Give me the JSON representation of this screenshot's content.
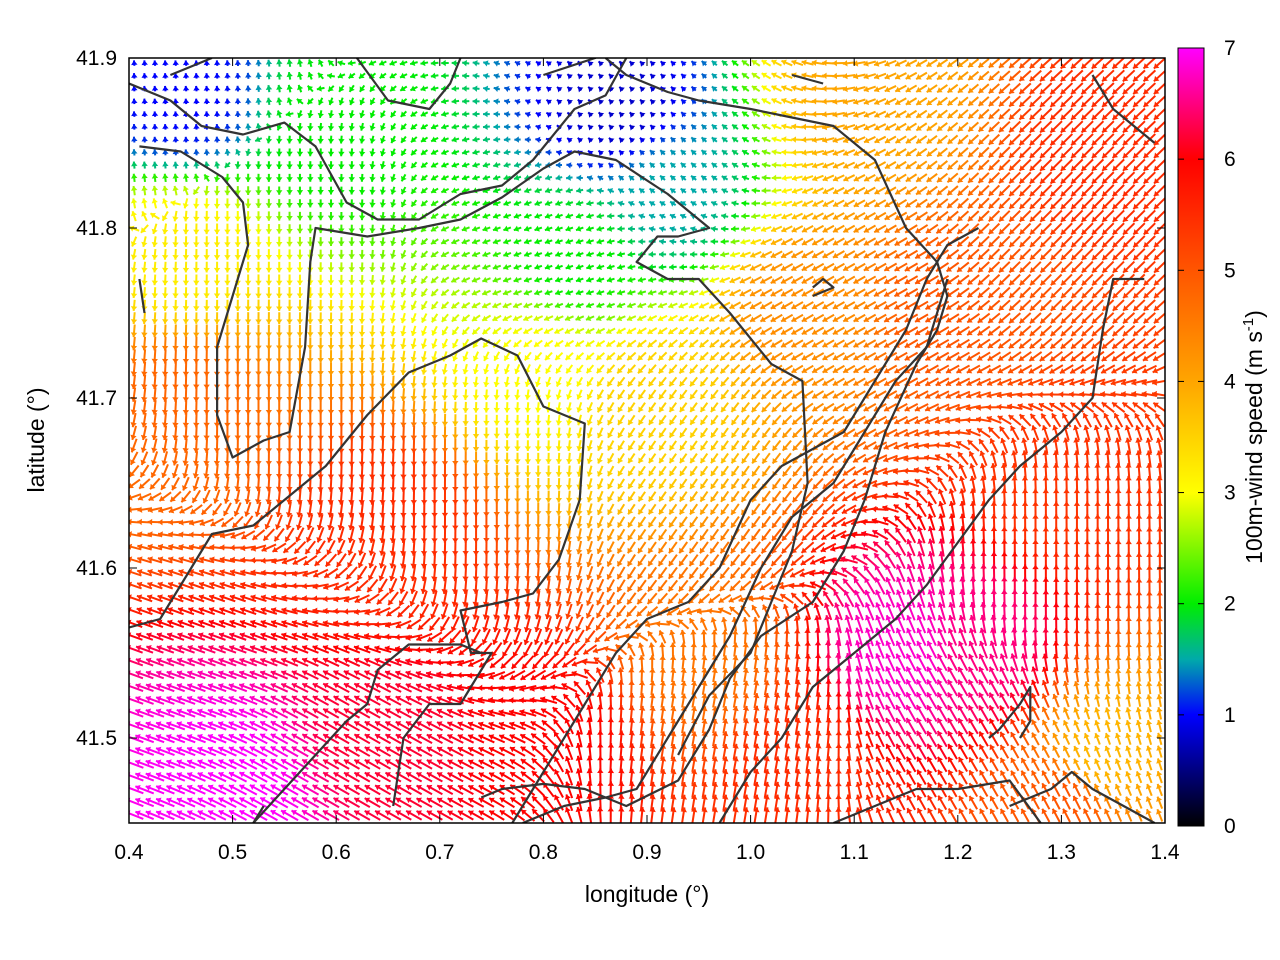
{
  "chart_data": {
    "type": "heatmap",
    "subtype": "vector-field",
    "xlabel": "longitude (°)",
    "ylabel": "latitude (°)",
    "xlim": [
      0.4,
      1.4
    ],
    "ylim": [
      41.45,
      41.9
    ],
    "xticks": [
      "0.4",
      "0.5",
      "0.6",
      "0.7",
      "0.8",
      "0.9",
      "1.0",
      "1.1",
      "1.2",
      "1.3",
      "1.4"
    ],
    "yticks": [
      "41.5",
      "41.6",
      "41.7",
      "41.8",
      "41.9"
    ],
    "grid": false,
    "colorbar": {
      "label_main": "100m-wind speed (m s",
      "label_sup": "-1",
      "label_close": ")",
      "range": [
        0,
        7
      ],
      "ticks": [
        "0",
        "1",
        "2",
        "3",
        "4",
        "5",
        "6",
        "7"
      ],
      "colormap": [
        [
          0,
          "#000000"
        ],
        [
          1,
          "#0000ff"
        ],
        [
          1.5,
          "#00aaaa"
        ],
        [
          2,
          "#00ee00"
        ],
        [
          3,
          "#ffff00"
        ],
        [
          4,
          "#ffa500"
        ],
        [
          5,
          "#ff5500"
        ],
        [
          6,
          "#ff0000"
        ],
        [
          7,
          "#ff00ff"
        ]
      ]
    },
    "arrow_grid_spacing_deg": [
      0.01,
      0.0075
    ],
    "speed_field": [
      {
        "lon": 0.45,
        "lat": 41.88,
        "speed": 1.0
      },
      {
        "lon": 0.87,
        "lat": 41.87,
        "speed": 0.8
      },
      {
        "lon": 0.92,
        "lat": 41.82,
        "speed": 1.5
      },
      {
        "lon": 0.6,
        "lat": 41.86,
        "speed": 2.0
      },
      {
        "lon": 0.83,
        "lat": 41.78,
        "speed": 2.0
      },
      {
        "lon": 0.45,
        "lat": 41.78,
        "speed": 3.2
      },
      {
        "lon": 0.8,
        "lat": 41.72,
        "speed": 3.0
      },
      {
        "lon": 0.9,
        "lat": 41.7,
        "speed": 3.5
      },
      {
        "lon": 1.12,
        "lat": 41.88,
        "speed": 4.0
      },
      {
        "lon": 1.05,
        "lat": 41.75,
        "speed": 4.3
      },
      {
        "lon": 0.45,
        "lat": 41.7,
        "speed": 4.8
      },
      {
        "lon": 0.65,
        "lat": 41.62,
        "speed": 5.5
      },
      {
        "lon": 1.2,
        "lat": 41.75,
        "speed": 5.0
      },
      {
        "lon": 1.35,
        "lat": 41.85,
        "speed": 5.5
      },
      {
        "lon": 1.3,
        "lat": 41.65,
        "speed": 5.4
      },
      {
        "lon": 0.95,
        "lat": 41.55,
        "speed": 4.6
      },
      {
        "lon": 1.15,
        "lat": 41.55,
        "speed": 6.8
      },
      {
        "lon": 1.22,
        "lat": 41.55,
        "speed": 6.5
      },
      {
        "lon": 0.5,
        "lat": 41.47,
        "speed": 7.0
      },
      {
        "lon": 0.65,
        "lat": 41.5,
        "speed": 6.2
      },
      {
        "lon": 0.8,
        "lat": 41.5,
        "speed": 6.0
      },
      {
        "lon": 1.05,
        "lat": 41.48,
        "speed": 5.5
      },
      {
        "lon": 1.34,
        "lat": 41.49,
        "speed": 3.8
      },
      {
        "lon": 1.3,
        "lat": 41.46,
        "speed": 5.0
      }
    ],
    "direction_field": [
      {
        "lon": 0.45,
        "lat": 41.88,
        "dir_deg": 95
      },
      {
        "lon": 0.88,
        "lat": 41.86,
        "dir_deg": 135
      },
      {
        "lon": 0.8,
        "lat": 41.8,
        "dir_deg": 200
      },
      {
        "lon": 0.55,
        "lat": 41.8,
        "dir_deg": 270
      },
      {
        "lon": 0.55,
        "lat": 41.7,
        "dir_deg": 270
      },
      {
        "lon": 0.75,
        "lat": 41.65,
        "dir_deg": 270
      },
      {
        "lon": 0.45,
        "lat": 41.55,
        "dir_deg": 160
      },
      {
        "lon": 0.6,
        "lat": 41.48,
        "dir_deg": 150
      },
      {
        "lon": 0.95,
        "lat": 41.65,
        "dir_deg": 235
      },
      {
        "lon": 1.1,
        "lat": 41.75,
        "dir_deg": 210
      },
      {
        "lon": 1.3,
        "lat": 41.8,
        "dir_deg": 225
      },
      {
        "lon": 1.3,
        "lat": 41.6,
        "dir_deg": 90
      },
      {
        "lon": 1.2,
        "lat": 41.5,
        "dir_deg": 120
      },
      {
        "lon": 1.0,
        "lat": 41.5,
        "dir_deg": 80
      }
    ],
    "contours": [
      [
        [
          0.4,
          41.885
        ],
        [
          0.44,
          41.875
        ],
        [
          0.47,
          41.86
        ],
        [
          0.51,
          41.855
        ],
        [
          0.55,
          41.862
        ],
        [
          0.58,
          41.848
        ],
        [
          0.61,
          41.815
        ],
        [
          0.64,
          41.805
        ],
        [
          0.68,
          41.805
        ],
        [
          0.72,
          41.82
        ],
        [
          0.76,
          41.825
        ],
        [
          0.79,
          41.84
        ],
        [
          0.83,
          41.87
        ],
        [
          0.86,
          41.878
        ],
        [
          0.88,
          41.9
        ]
      ],
      [
        [
          0.41,
          41.848
        ],
        [
          0.45,
          41.845
        ],
        [
          0.49,
          41.83
        ],
        [
          0.51,
          41.815
        ],
        [
          0.515,
          41.79
        ],
        [
          0.5,
          41.76
        ],
        [
          0.485,
          41.73
        ],
        [
          0.485,
          41.69
        ],
        [
          0.5,
          41.665
        ],
        [
          0.53,
          41.675
        ],
        [
          0.555,
          41.68
        ],
        [
          0.57,
          41.73
        ],
        [
          0.575,
          41.78
        ],
        [
          0.58,
          41.8
        ],
        [
          0.63,
          41.795
        ],
        [
          0.68,
          41.8
        ],
        [
          0.72,
          41.805
        ],
        [
          0.76,
          41.818
        ],
        [
          0.8,
          41.835
        ],
        [
          0.83,
          41.845
        ],
        [
          0.87,
          41.84
        ],
        [
          0.92,
          41.82
        ],
        [
          0.96,
          41.8
        ],
        [
          0.93,
          41.795
        ],
        [
          0.91,
          41.795
        ],
        [
          0.89,
          41.78
        ],
        [
          0.92,
          41.77
        ],
        [
          0.95,
          41.77
        ],
        [
          0.98,
          41.75
        ],
        [
          1.02,
          41.72
        ],
        [
          1.05,
          41.71
        ],
        [
          1.055,
          41.65
        ],
        [
          1.04,
          41.61
        ],
        [
          1.02,
          41.58
        ],
        [
          1.0,
          41.55
        ],
        [
          0.96,
          41.525
        ],
        [
          0.93,
          41.49
        ]
      ],
      [
        [
          0.4,
          41.565
        ],
        [
          0.43,
          41.57
        ],
        [
          0.46,
          41.6
        ],
        [
          0.48,
          41.62
        ],
        [
          0.52,
          41.625
        ],
        [
          0.55,
          41.64
        ],
        [
          0.59,
          41.66
        ],
        [
          0.63,
          41.69
        ],
        [
          0.67,
          41.715
        ],
        [
          0.71,
          41.725
        ],
        [
          0.74,
          41.735
        ],
        [
          0.775,
          41.725
        ],
        [
          0.8,
          41.695
        ],
        [
          0.84,
          41.685
        ],
        [
          0.835,
          41.64
        ],
        [
          0.815,
          41.605
        ],
        [
          0.79,
          41.585
        ],
        [
          0.76,
          41.58
        ],
        [
          0.72,
          41.575
        ],
        [
          0.73,
          41.55
        ],
        [
          0.75,
          41.55
        ],
        [
          0.72,
          41.52
        ],
        [
          0.69,
          41.52
        ],
        [
          0.665,
          41.5
        ],
        [
          0.655,
          41.46
        ]
      ],
      [
        [
          0.52,
          41.45
        ],
        [
          0.55,
          41.47
        ],
        [
          0.58,
          41.49
        ],
        [
          0.61,
          41.51
        ],
        [
          0.63,
          41.52
        ],
        [
          0.64,
          41.54
        ],
        [
          0.67,
          41.555
        ],
        [
          0.7,
          41.555
        ],
        [
          0.72,
          41.555
        ],
        [
          0.74,
          41.55
        ]
      ],
      [
        [
          0.74,
          41.465
        ],
        [
          0.76,
          41.47
        ],
        [
          0.8,
          41.473
        ],
        [
          0.84,
          41.47
        ],
        [
          0.88,
          41.46
        ],
        [
          0.93,
          41.475
        ],
        [
          0.96,
          41.505
        ],
        [
          0.98,
          41.535
        ],
        [
          1.01,
          41.56
        ],
        [
          1.06,
          41.58
        ],
        [
          1.09,
          41.61
        ],
        [
          1.11,
          41.64
        ],
        [
          1.13,
          41.68
        ],
        [
          1.16,
          41.72
        ],
        [
          1.18,
          41.74
        ],
        [
          1.19,
          41.76
        ],
        [
          1.18,
          41.78
        ],
        [
          1.15,
          41.8
        ],
        [
          1.12,
          41.84
        ],
        [
          1.08,
          41.86
        ],
        [
          1.04,
          41.865
        ],
        [
          1.0,
          41.87
        ],
        [
          0.95,
          41.875
        ],
        [
          0.92,
          41.88
        ],
        [
          0.88,
          41.89
        ],
        [
          0.86,
          41.9
        ]
      ],
      [
        [
          0.77,
          41.45
        ],
        [
          0.8,
          41.48
        ],
        [
          0.83,
          41.51
        ],
        [
          0.87,
          41.55
        ],
        [
          0.9,
          41.57
        ],
        [
          0.94,
          41.58
        ],
        [
          0.97,
          41.6
        ],
        [
          1.0,
          41.64
        ],
        [
          1.03,
          41.66
        ],
        [
          1.06,
          41.67
        ],
        [
          1.09,
          41.68
        ],
        [
          1.12,
          41.71
        ],
        [
          1.15,
          41.74
        ],
        [
          1.17,
          41.77
        ],
        [
          1.19,
          41.79
        ],
        [
          1.22,
          41.8
        ]
      ],
      [
        [
          0.78,
          41.45
        ],
        [
          0.82,
          41.46
        ],
        [
          0.86,
          41.465
        ],
        [
          0.89,
          41.47
        ],
        [
          0.92,
          41.5
        ],
        [
          0.95,
          41.53
        ],
        [
          0.98,
          41.56
        ],
        [
          1.01,
          41.6
        ],
        [
          1.04,
          41.63
        ],
        [
          1.08,
          41.65
        ],
        [
          1.11,
          41.68
        ],
        [
          1.14,
          41.71
        ],
        [
          1.17,
          41.73
        ],
        [
          1.18,
          41.75
        ],
        [
          1.19,
          41.77
        ]
      ],
      [
        [
          0.97,
          41.45
        ],
        [
          1.0,
          41.48
        ],
        [
          1.03,
          41.5
        ],
        [
          1.06,
          41.53
        ],
        [
          1.1,
          41.55
        ],
        [
          1.14,
          41.57
        ],
        [
          1.17,
          41.59
        ],
        [
          1.2,
          41.615
        ],
        [
          1.23,
          41.64
        ],
        [
          1.26,
          41.66
        ],
        [
          1.28,
          41.67
        ],
        [
          1.3,
          41.68
        ],
        [
          1.33,
          41.7
        ],
        [
          1.34,
          41.74
        ],
        [
          1.35,
          41.77
        ],
        [
          1.38,
          41.77
        ]
      ],
      [
        [
          1.25,
          41.46
        ],
        [
          1.27,
          41.465
        ],
        [
          1.29,
          41.47
        ],
        [
          1.31,
          41.48
        ],
        [
          1.33,
          41.47
        ],
        [
          1.36,
          41.46
        ],
        [
          1.39,
          41.45
        ]
      ],
      [
        [
          1.23,
          41.5
        ],
        [
          1.24,
          41.505
        ],
        [
          1.26,
          41.52
        ],
        [
          1.27,
          41.53
        ],
        [
          1.27,
          41.51
        ],
        [
          1.26,
          41.5
        ]
      ],
      [
        [
          1.08,
          41.45
        ],
        [
          1.12,
          41.46
        ],
        [
          1.16,
          41.47
        ],
        [
          1.2,
          41.47
        ],
        [
          1.25,
          41.475
        ],
        [
          1.28,
          41.45
        ]
      ],
      [
        [
          0.52,
          41.45
        ],
        [
          0.53,
          41.46
        ]
      ],
      [
        [
          0.41,
          41.77
        ],
        [
          0.415,
          41.75
        ]
      ],
      [
        [
          0.44,
          41.89
        ],
        [
          0.46,
          41.895
        ],
        [
          0.48,
          41.9
        ]
      ],
      [
        [
          0.62,
          41.9
        ],
        [
          0.65,
          41.875
        ],
        [
          0.69,
          41.87
        ],
        [
          0.71,
          41.885
        ],
        [
          0.72,
          41.9
        ]
      ],
      [
        [
          1.04,
          41.89
        ],
        [
          1.07,
          41.885
        ]
      ],
      [
        [
          1.33,
          41.89
        ],
        [
          1.35,
          41.87
        ],
        [
          1.37,
          41.86
        ],
        [
          1.39,
          41.85
        ]
      ],
      [
        [
          1.06,
          41.76
        ],
        [
          1.08,
          41.765
        ],
        [
          1.07,
          41.77
        ],
        [
          1.06,
          41.765
        ]
      ],
      [
        [
          0.8,
          41.89
        ],
        [
          0.85,
          41.9
        ],
        [
          0.87,
          41.91
        ]
      ]
    ]
  }
}
